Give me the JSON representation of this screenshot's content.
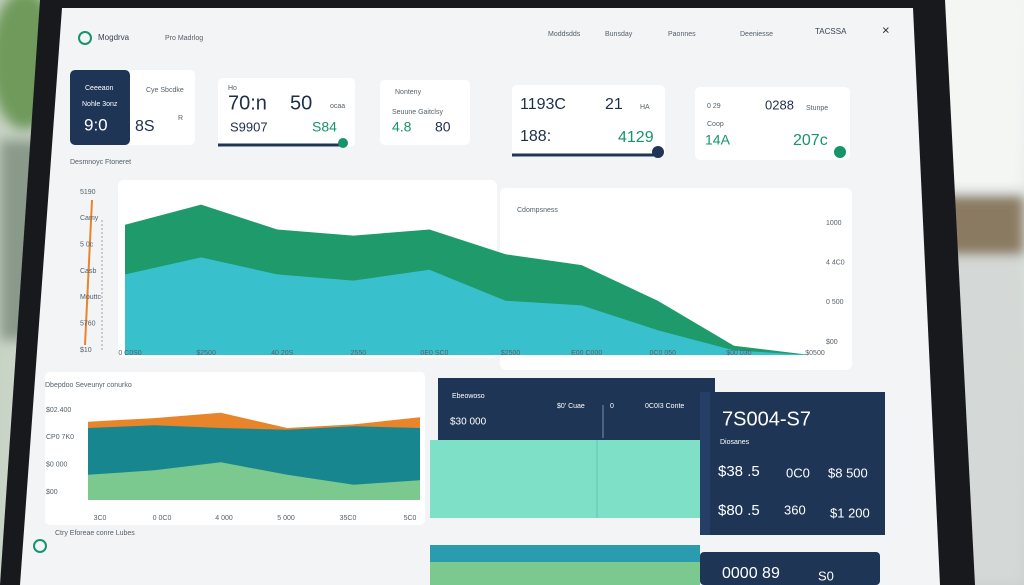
{
  "header": {
    "logo": "Mogdrva",
    "subtitle": "Pro Madrlog",
    "nav": [
      "Moddsdds",
      "Bunsday",
      "Paonnes",
      "Deeniesse"
    ],
    "account": "TACSSA",
    "close": "×"
  },
  "kpi_cards": [
    {
      "lines": [
        "Ceeeaon",
        "Nohle 3onz",
        "9:0",
        "Cye Sbcdke",
        "8S",
        "R"
      ]
    },
    {
      "lines": [
        "Ho",
        "70:n",
        "50",
        "ocaa",
        "S9907",
        "S84"
      ]
    },
    {
      "lines": [
        "Nonteny",
        "Seuune Gaitclsy",
        "4.8",
        "80"
      ]
    },
    {
      "lines": [
        "1193C",
        "21",
        "HA",
        "188:",
        "4129"
      ]
    },
    {
      "lines": [
        "0 29",
        "0288",
        "Stunpe",
        "Coop",
        "14A",
        "207c"
      ]
    }
  ],
  "charts": [
    {
      "type": "area",
      "title": "Desmnoyc Ftoneret",
      "subtitle": "Cdompsness",
      "y_labels": [
        "5190",
        "Camy",
        "5 0c",
        "Casb",
        "Mouttc",
        "5760",
        "$10"
      ],
      "y2_labels": [
        "1000",
        "4 4C0",
        "0 500",
        "$00"
      ],
      "x_labels": [
        "0 C0S0",
        "$2500",
        "40 20S",
        "2550",
        "0E0 SC0",
        "$2500",
        "E00 C000",
        "0C0 050",
        "$00 030",
        "$0500"
      ],
      "ylim": [
        0,
        100
      ],
      "series": [
        {
          "color": "#1f9a6a",
          "values": [
            84,
            97,
            81,
            77,
            81,
            65,
            58,
            35,
            6,
            0
          ]
        },
        {
          "color": "#3cc4d8",
          "values": [
            52,
            63,
            52,
            48,
            55,
            35,
            32,
            16,
            3,
            0
          ]
        }
      ]
    },
    {
      "type": "area",
      "title": "Dbepdoo Seveunyr conurko",
      "footer": "Ctry Eforeae conre Lubes",
      "y_labels": [
        "$02.400",
        "CP0 7K0",
        "$0 000",
        "$00"
      ],
      "x_labels": [
        "3C0",
        "0 0C0",
        "4 000",
        "5 000",
        "35C0",
        "5C0"
      ],
      "ylim": [
        0,
        100
      ],
      "series": [
        {
          "color": "#e8842a",
          "values": [
            87,
            91,
            97,
            80,
            84,
            92
          ]
        },
        {
          "color": "#18868f",
          "values": [
            80,
            83,
            80,
            78,
            82,
            80
          ]
        },
        {
          "color": "#7cc98f",
          "values": [
            28,
            33,
            42,
            28,
            17,
            22
          ]
        }
      ]
    }
  ],
  "summary_panel": {
    "title": "Ebeowoso",
    "items": [
      "$0' Cuae",
      "0",
      "0C0I3 Conte"
    ],
    "value": "$30 000"
  },
  "stats_panel": {
    "headline": "7S004-S7",
    "caption": "Diosanes",
    "rows": [
      [
        "$38 .5",
        "0C0",
        "$8 500"
      ],
      [
        "$80 .5",
        "360",
        "$1 200"
      ]
    ]
  },
  "footer_card": {
    "value": "0000 89",
    "extra": "S0"
  }
}
